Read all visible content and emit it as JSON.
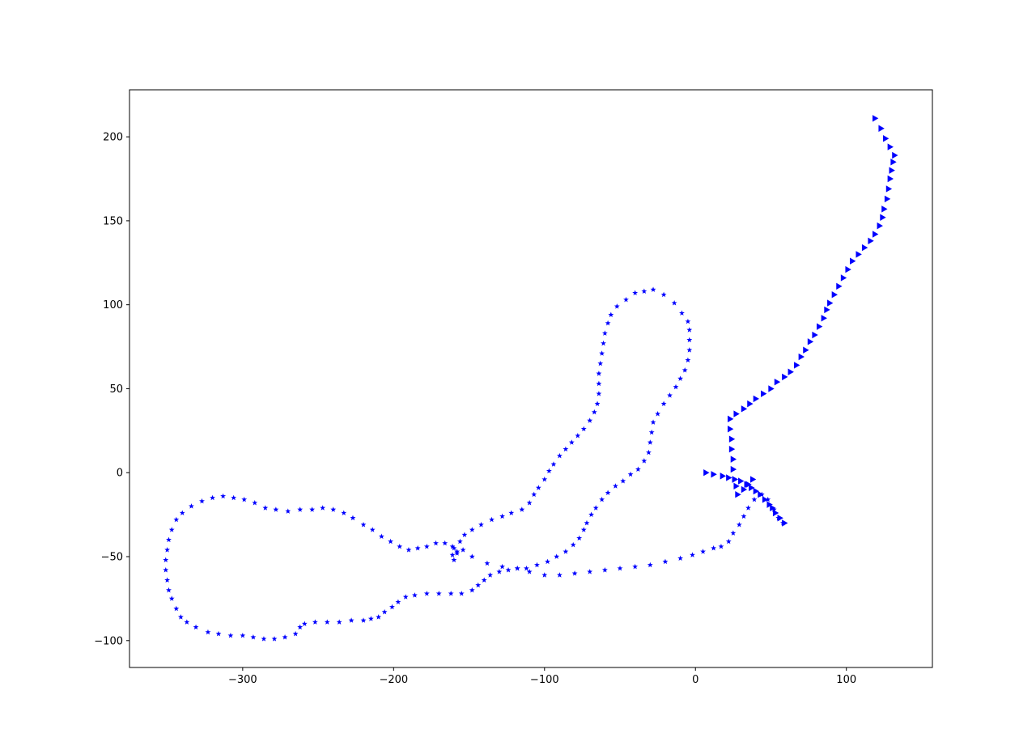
{
  "chart_data": {
    "type": "scatter",
    "title": "",
    "xlabel": "",
    "ylabel": "",
    "xlim": [
      -375,
      157
    ],
    "ylim": [
      -116,
      228
    ],
    "xticks": [
      -300,
      -200,
      -100,
      0,
      100
    ],
    "xtick_labels": [
      "−300",
      "−200",
      "−100",
      "0",
      "100"
    ],
    "yticks": [
      -100,
      -50,
      0,
      50,
      100,
      150,
      200
    ],
    "ytick_labels": [
      "−100",
      "−50",
      "0",
      "50",
      "100",
      "150",
      "200"
    ],
    "grid": false,
    "legend": "none",
    "series": [
      {
        "marker": "star",
        "color": "#0000ff",
        "points": [
          [
            -160,
            -52
          ],
          [
            -158,
            -48
          ],
          [
            -154,
            -46
          ],
          [
            -148,
            -50
          ],
          [
            -138,
            -54
          ],
          [
            -128,
            -56
          ],
          [
            -118,
            -57
          ],
          [
            -110,
            -59
          ],
          [
            -100,
            -61
          ],
          [
            -90,
            -61
          ],
          [
            -80,
            -60
          ],
          [
            -70,
            -59
          ],
          [
            -60,
            -58
          ],
          [
            -50,
            -57
          ],
          [
            -40,
            -56
          ],
          [
            -30,
            -55
          ],
          [
            -20,
            -53
          ],
          [
            -10,
            -51
          ],
          [
            -2,
            -49
          ],
          [
            5,
            -47
          ],
          [
            12,
            -45
          ],
          [
            17,
            -44
          ],
          [
            22,
            -41
          ],
          [
            25,
            -36
          ],
          [
            29,
            -31
          ],
          [
            32,
            -26
          ],
          [
            35,
            -21
          ],
          [
            39,
            -16
          ],
          [
            44,
            -13
          ],
          [
            48,
            -16
          ],
          [
            52,
            -22
          ],
          [
            55,
            -27
          ],
          [
            58,
            -30
          ],
          [
            -161,
            -49
          ],
          [
            -160,
            -45
          ],
          [
            -156,
            -41
          ],
          [
            -153,
            -37
          ],
          [
            -148,
            -34
          ],
          [
            -142,
            -31
          ],
          [
            -135,
            -28
          ],
          [
            -128,
            -26
          ],
          [
            -122,
            -24
          ],
          [
            -115,
            -22
          ],
          [
            -110,
            -18
          ],
          [
            -107,
            -13
          ],
          [
            -104,
            -9
          ],
          [
            -100,
            -4
          ],
          [
            -97,
            1
          ],
          [
            -94,
            5
          ],
          [
            -90,
            10
          ],
          [
            -86,
            14
          ],
          [
            -82,
            18
          ],
          [
            -78,
            22
          ],
          [
            -74,
            26
          ],
          [
            -70,
            31
          ],
          [
            -67,
            36
          ],
          [
            -65,
            41
          ],
          [
            -64,
            47
          ],
          [
            -64,
            53
          ],
          [
            -64,
            59
          ],
          [
            -63,
            65
          ],
          [
            -62,
            71
          ],
          [
            -61,
            77
          ],
          [
            -60,
            83
          ],
          [
            -58,
            89
          ],
          [
            -56,
            94
          ],
          [
            -52,
            99
          ],
          [
            -46,
            103
          ],
          [
            -40,
            107
          ],
          [
            -34,
            108
          ],
          [
            -28,
            109
          ],
          [
            -21,
            106
          ],
          [
            -14,
            101
          ],
          [
            -9,
            95
          ],
          [
            -5,
            90
          ],
          [
            -4,
            85
          ],
          [
            -4,
            79
          ],
          [
            -4,
            73
          ],
          [
            -5,
            67
          ],
          [
            -7,
            61
          ],
          [
            -10,
            56
          ],
          [
            -13,
            51
          ],
          [
            -17,
            46
          ],
          [
            -21,
            41
          ],
          [
            -25,
            35
          ],
          [
            -28,
            30
          ],
          [
            -29,
            24
          ],
          [
            -30,
            18
          ],
          [
            -31,
            12
          ],
          [
            -34,
            7
          ],
          [
            -38,
            2
          ],
          [
            -43,
            -1
          ],
          [
            -48,
            -5
          ],
          [
            -53,
            -8
          ],
          [
            -58,
            -12
          ],
          [
            -62,
            -16
          ],
          [
            -66,
            -21
          ],
          [
            -69,
            -25
          ],
          [
            -72,
            -30
          ],
          [
            -74,
            -34
          ],
          [
            -77,
            -39
          ],
          [
            -81,
            -43
          ],
          [
            -86,
            -47
          ],
          [
            -92,
            -50
          ],
          [
            -98,
            -53
          ],
          [
            -105,
            -55
          ],
          [
            -112,
            -57
          ],
          [
            -118,
            -57
          ],
          [
            -124,
            -58
          ],
          [
            -130,
            -59
          ],
          [
            -136,
            -61
          ],
          [
            -140,
            -64
          ],
          [
            -144,
            -67
          ],
          [
            -148,
            -70
          ],
          [
            -155,
            -72
          ],
          [
            -162,
            -72
          ],
          [
            -170,
            -72
          ],
          [
            -178,
            -72
          ],
          [
            -186,
            -73
          ],
          [
            -192,
            -74
          ],
          [
            -197,
            -77
          ],
          [
            -201,
            -80
          ],
          [
            -206,
            -83
          ],
          [
            -210,
            -86
          ],
          [
            -215,
            -87
          ],
          [
            -220,
            -88
          ],
          [
            -228,
            -88
          ],
          [
            -236,
            -89
          ],
          [
            -244,
            -89
          ],
          [
            -252,
            -89
          ],
          [
            -259,
            -90
          ],
          [
            -262,
            -92
          ],
          [
            -265,
            -96
          ],
          [
            -272,
            -98
          ],
          [
            -279,
            -99
          ],
          [
            -286,
            -99
          ],
          [
            -293,
            -98
          ],
          [
            -300,
            -97
          ],
          [
            -308,
            -97
          ],
          [
            -316,
            -96
          ],
          [
            -323,
            -95
          ],
          [
            -331,
            -92
          ],
          [
            -337,
            -89
          ],
          [
            -341,
            -86
          ],
          [
            -344,
            -81
          ],
          [
            -347,
            -75
          ],
          [
            -349,
            -70
          ],
          [
            -350,
            -64
          ],
          [
            -351,
            -58
          ],
          [
            -351,
            -52
          ],
          [
            -350,
            -46
          ],
          [
            -349,
            -40
          ],
          [
            -347,
            -34
          ],
          [
            -344,
            -28
          ],
          [
            -340,
            -24
          ],
          [
            -334,
            -20
          ],
          [
            -327,
            -17
          ],
          [
            -320,
            -15
          ],
          [
            -313,
            -14
          ],
          [
            -306,
            -15
          ],
          [
            -299,
            -16
          ],
          [
            -292,
            -18
          ],
          [
            -285,
            -21
          ],
          [
            -278,
            -22
          ],
          [
            -270,
            -23
          ],
          [
            -262,
            -22
          ],
          [
            -254,
            -22
          ],
          [
            -247,
            -21
          ],
          [
            -240,
            -22
          ],
          [
            -233,
            -24
          ],
          [
            -227,
            -27
          ],
          [
            -220,
            -31
          ],
          [
            -214,
            -34
          ],
          [
            -208,
            -38
          ],
          [
            -202,
            -41
          ],
          [
            -196,
            -44
          ],
          [
            -190,
            -46
          ],
          [
            -184,
            -45
          ],
          [
            -178,
            -44
          ],
          [
            -172,
            -42
          ],
          [
            -166,
            -42
          ],
          [
            -161,
            -44
          ],
          [
            -158,
            -47
          ]
        ]
      },
      {
        "marker": "triangle-right",
        "color": "#0000ff",
        "points": [
          [
            7,
            0
          ],
          [
            12,
            -1
          ],
          [
            18,
            -2
          ],
          [
            22,
            -3
          ],
          [
            26,
            -4
          ],
          [
            30,
            -5
          ],
          [
            34,
            -7
          ],
          [
            37,
            -9
          ],
          [
            40,
            -11
          ],
          [
            43,
            -13
          ],
          [
            46,
            -16
          ],
          [
            49,
            -19
          ],
          [
            51,
            -21
          ],
          [
            53,
            -24
          ],
          [
            56,
            -27
          ],
          [
            59,
            -30
          ],
          [
            38,
            -4
          ],
          [
            35,
            -7
          ],
          [
            32,
            -10
          ],
          [
            28,
            -13
          ],
          [
            27,
            -8
          ],
          [
            26,
            -4
          ],
          [
            25,
            2
          ],
          [
            25,
            8
          ],
          [
            24,
            14
          ],
          [
            24,
            20
          ],
          [
            23,
            26
          ],
          [
            23,
            32
          ],
          [
            27,
            35
          ],
          [
            32,
            38
          ],
          [
            36,
            41
          ],
          [
            40,
            44
          ],
          [
            45,
            47
          ],
          [
            50,
            50
          ],
          [
            54,
            54
          ],
          [
            59,
            57
          ],
          [
            63,
            60
          ],
          [
            67,
            64
          ],
          [
            70,
            69
          ],
          [
            73,
            73
          ],
          [
            76,
            78
          ],
          [
            79,
            82
          ],
          [
            82,
            87
          ],
          [
            85,
            92
          ],
          [
            87,
            97
          ],
          [
            89,
            101
          ],
          [
            92,
            106
          ],
          [
            95,
            111
          ],
          [
            98,
            116
          ],
          [
            101,
            121
          ],
          [
            104,
            126
          ],
          [
            108,
            130
          ],
          [
            112,
            134
          ],
          [
            116,
            138
          ],
          [
            119,
            142
          ],
          [
            122,
            147
          ],
          [
            124,
            152
          ],
          [
            125,
            157
          ],
          [
            127,
            163
          ],
          [
            128,
            169
          ],
          [
            129,
            175
          ],
          [
            130,
            180
          ],
          [
            131,
            185
          ],
          [
            132,
            189
          ],
          [
            129,
            194
          ],
          [
            126,
            199
          ],
          [
            123,
            205
          ],
          [
            119,
            211
          ]
        ]
      }
    ]
  }
}
